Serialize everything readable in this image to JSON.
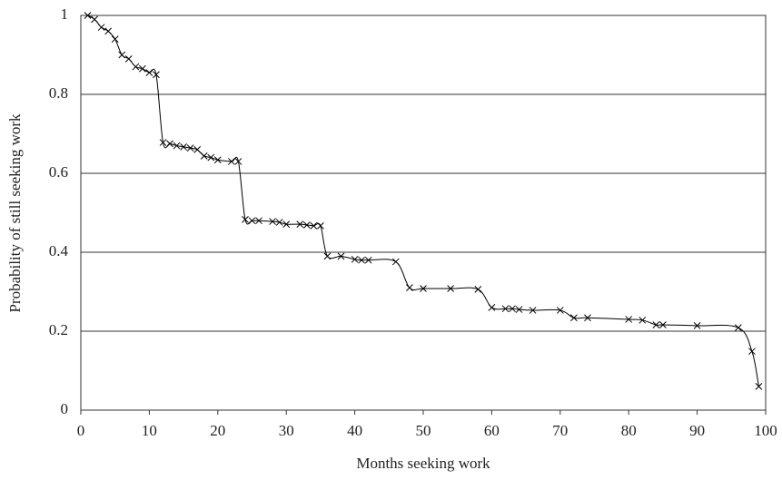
{
  "chart_data": {
    "type": "line",
    "xlabel": "Months seeking work",
    "ylabel": "Probability of still seeking work",
    "x": [
      1,
      2,
      3,
      4,
      5,
      6,
      7,
      8,
      9,
      10,
      11,
      12,
      13,
      14,
      15,
      16,
      17,
      18,
      19,
      20,
      22,
      23,
      24,
      25,
      26,
      28,
      29,
      30,
      32,
      33,
      34,
      35,
      36,
      38,
      40,
      41,
      42,
      46,
      48,
      50,
      54,
      58,
      60,
      62,
      63,
      64,
      66,
      70,
      72,
      74,
      80,
      82,
      84,
      85,
      90,
      96,
      98,
      99
    ],
    "series": [
      {
        "color": "#000000",
        "values": [
          1.0,
          0.99,
          0.97,
          0.96,
          0.94,
          0.9,
          0.89,
          0.87,
          0.865,
          0.855,
          0.85,
          0.678,
          0.675,
          0.67,
          0.667,
          0.664,
          0.66,
          0.644,
          0.64,
          0.634,
          0.63,
          0.63,
          0.483,
          0.48,
          0.48,
          0.478,
          0.476,
          0.471,
          0.471,
          0.469,
          0.467,
          0.467,
          0.39,
          0.39,
          0.382,
          0.38,
          0.38,
          0.376,
          0.31,
          0.308,
          0.308,
          0.306,
          0.26,
          0.257,
          0.257,
          0.255,
          0.253,
          0.253,
          0.234,
          0.234,
          0.23,
          0.228,
          0.216,
          0.216,
          0.214,
          0.209,
          0.149,
          0.06
        ]
      }
    ],
    "xlim": [
      0,
      100
    ],
    "xticks": [
      0,
      10,
      20,
      30,
      40,
      50,
      60,
      70,
      80,
      90,
      100
    ],
    "ylim": [
      0,
      1
    ],
    "yticks": [
      0,
      0.2,
      0.4,
      0.6,
      0.8,
      1
    ],
    "grid": true
  }
}
